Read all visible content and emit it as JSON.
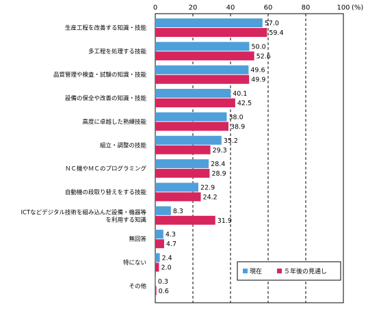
{
  "chart_data": {
    "type": "bar",
    "orientation": "horizontal",
    "unit_label": "(%)",
    "xlim": [
      0,
      100
    ],
    "x_ticks": [
      "0",
      "20",
      "40",
      "60",
      "80",
      "100"
    ],
    "grid": "dashed vertical at 20, 40, 60, 80, 100",
    "legend_position": "bottom-right",
    "categories": [
      [
        "生産工程を改善する知識・技能"
      ],
      [
        "多工程を処理する技能"
      ],
      [
        "品質管理や検査・試験の知識・技能"
      ],
      [
        "設備の保全や改善の知識・技能"
      ],
      [
        "高度に卓越した熟練技能"
      ],
      [
        "組立・調整の技能"
      ],
      [
        "ＮＣ機やＭＣのプログラミング"
      ],
      [
        "自動機の段取り替えをする技能"
      ],
      [
        "ICTなどデジタル技術を組み込んだ設備・機器等",
        "を利用する知識"
      ],
      [
        "無回答"
      ],
      [
        "特にない"
      ],
      [
        "その他"
      ]
    ],
    "series": [
      {
        "name": "現在",
        "color": "#4f9fdb",
        "values": [
          57.0,
          50.0,
          49.6,
          40.1,
          38.0,
          35.2,
          28.4,
          22.9,
          8.3,
          4.3,
          2.4,
          0.3
        ]
      },
      {
        "name": "５年後の見通し",
        "color": "#d6265d",
        "values": [
          59.4,
          52.6,
          49.9,
          42.5,
          38.9,
          29.3,
          28.9,
          24.2,
          31.9,
          4.7,
          2.0,
          0.6
        ]
      }
    ],
    "value_labels": [
      [
        "57.0",
        "50.0",
        "49.6",
        "40.1",
        "38.0",
        "35.2",
        "28.4",
        "22.9",
        "8.3",
        "4.3",
        "2.4",
        "0.3"
      ],
      [
        "59.4",
        "52.6",
        "49.9",
        "42.5",
        "38.9",
        "29.3",
        "28.9",
        "24.2",
        "31.9",
        "4.7",
        "2.0",
        "0.6"
      ]
    ]
  }
}
